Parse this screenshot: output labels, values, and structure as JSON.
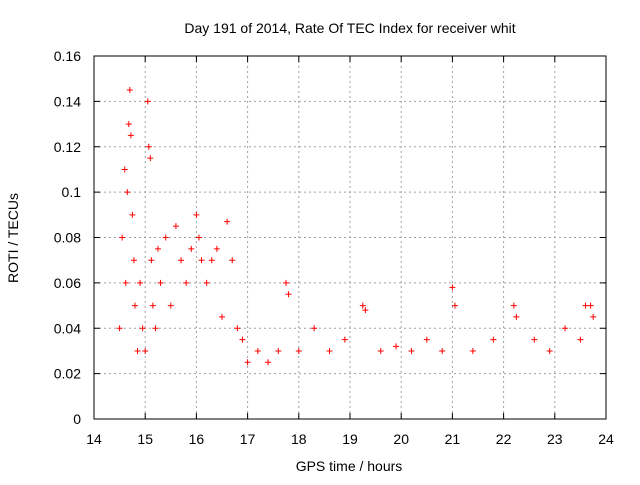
{
  "chart_data": {
    "type": "scatter",
    "title": "Day 191 of 2014, Rate Of TEC Index for receiver whit",
    "xlabel": "GPS time / hours",
    "ylabel": "ROTI / TECUs",
    "xlim": [
      14,
      24
    ],
    "ylim": [
      0,
      0.16
    ],
    "xticks": [
      "14",
      "15",
      "16",
      "17",
      "18",
      "19",
      "20",
      "21",
      "22",
      "23",
      "24"
    ],
    "yticks": [
      "0",
      "0.02",
      "0.04",
      "0.06",
      "0.08",
      "0.1",
      "0.12",
      "0.14",
      "0.16"
    ],
    "grid": true,
    "marker": "+",
    "series": [
      {
        "name": "ROTI",
        "color": "#ff0000",
        "x": [
          14.5,
          14.55,
          14.6,
          14.62,
          14.65,
          14.68,
          14.7,
          14.72,
          14.75,
          14.78,
          14.8,
          14.85,
          14.9,
          14.95,
          15.0,
          15.05,
          15.07,
          15.1,
          15.12,
          15.15,
          15.2,
          15.25,
          15.3,
          15.4,
          15.5,
          15.6,
          15.7,
          15.8,
          15.9,
          16.0,
          16.05,
          16.1,
          16.2,
          16.3,
          16.4,
          16.5,
          16.6,
          16.7,
          16.8,
          16.9,
          17.0,
          17.2,
          17.4,
          17.6,
          17.75,
          17.8,
          18.0,
          18.3,
          18.6,
          18.9,
          19.25,
          19.3,
          19.6,
          19.9,
          20.2,
          20.5,
          20.8,
          21.0,
          21.05,
          21.4,
          21.8,
          22.2,
          22.25,
          22.6,
          22.9,
          23.2,
          23.5,
          23.6,
          23.7,
          23.75
        ],
        "y": [
          0.04,
          0.08,
          0.11,
          0.06,
          0.1,
          0.13,
          0.145,
          0.125,
          0.09,
          0.07,
          0.05,
          0.03,
          0.06,
          0.04,
          0.03,
          0.14,
          0.12,
          0.115,
          0.07,
          0.05,
          0.04,
          0.075,
          0.06,
          0.08,
          0.05,
          0.085,
          0.07,
          0.06,
          0.075,
          0.09,
          0.08,
          0.07,
          0.06,
          0.07,
          0.075,
          0.045,
          0.087,
          0.07,
          0.04,
          0.035,
          0.025,
          0.03,
          0.025,
          0.03,
          0.06,
          0.055,
          0.03,
          0.04,
          0.03,
          0.035,
          0.05,
          0.048,
          0.03,
          0.032,
          0.03,
          0.035,
          0.03,
          0.058,
          0.05,
          0.03,
          0.035,
          0.05,
          0.045,
          0.035,
          0.03,
          0.04,
          0.035,
          0.05,
          0.05,
          0.045
        ]
      }
    ]
  }
}
